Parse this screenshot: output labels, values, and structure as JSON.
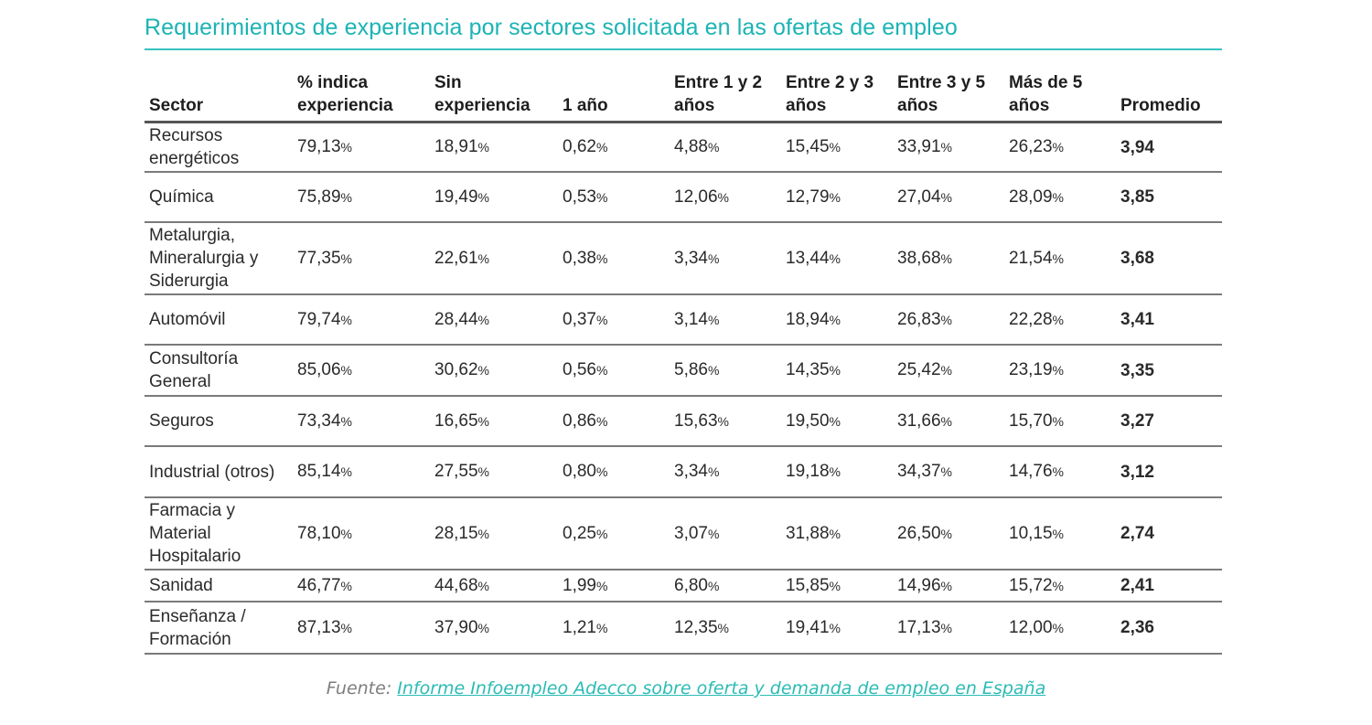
{
  "chart_data": {
    "type": "table",
    "title": "Requerimientos de experiencia por sectores solicitada en las ofertas de empleo",
    "columns": [
      "Sector",
      "% indica experiencia",
      "Sin experiencia",
      "1 año",
      "Entre 1 y 2 años",
      "Entre 2 y 3 años",
      "Entre 3 y 5 años",
      "Más de 5 años",
      "Promedio"
    ],
    "rows": [
      {
        "sector": "Recursos energéticos",
        "values": [
          "79,13",
          "18,91",
          "0,62",
          "4,88",
          "15,45",
          "33,91",
          "26,23"
        ],
        "promedio": "3,94"
      },
      {
        "sector": "Química",
        "values": [
          "75,89",
          "19,49",
          "0,53",
          "12,06",
          "12,79",
          "27,04",
          "28,09"
        ],
        "promedio": "3,85"
      },
      {
        "sector": "Metalurgia, Mineralurgia y Siderurgia",
        "values": [
          "77,35",
          "22,61",
          "0,38",
          "3,34",
          "13,44",
          "38,68",
          "21,54"
        ],
        "promedio": "3,68"
      },
      {
        "sector": "Automóvil",
        "values": [
          "79,74",
          "28,44",
          "0,37",
          "3,14",
          "18,94",
          "26,83",
          "22,28"
        ],
        "promedio": "3,41"
      },
      {
        "sector": "Consultoría General",
        "values": [
          "85,06",
          "30,62",
          "0,56",
          "5,86",
          "14,35",
          "25,42",
          "23,19"
        ],
        "promedio": "3,35"
      },
      {
        "sector": "Seguros",
        "values": [
          "73,34",
          "16,65",
          "0,86",
          "15,63",
          "19,50",
          "31,66",
          "15,70"
        ],
        "promedio": "3,27"
      },
      {
        "sector": "Industrial (otros)",
        "values": [
          "85,14",
          "27,55",
          "0,80",
          "3,34",
          "19,18",
          "34,37",
          "14,76"
        ],
        "promedio": "3,12"
      },
      {
        "sector": "Farmacia y Material Hospitalario",
        "values": [
          "78,10",
          "28,15",
          "0,25",
          "3,07",
          "31,88",
          "26,50",
          "10,15"
        ],
        "promedio": "2,74"
      },
      {
        "sector": "Sanidad",
        "values": [
          "46,77",
          "44,68",
          "1,99",
          "6,80",
          "15,85",
          "14,96",
          "15,72"
        ],
        "promedio": "2,41"
      },
      {
        "sector": "Enseñanza / Formación",
        "values": [
          "87,13",
          "37,90",
          "1,21",
          "12,35",
          "19,41",
          "17,13",
          "12,00"
        ],
        "promedio": "2,36"
      }
    ],
    "unit": "%"
  },
  "source": {
    "prefix": "Fuente:",
    "link_text": "Informe Infoempleo Adecco sobre oferta y demanda de empleo en España"
  }
}
